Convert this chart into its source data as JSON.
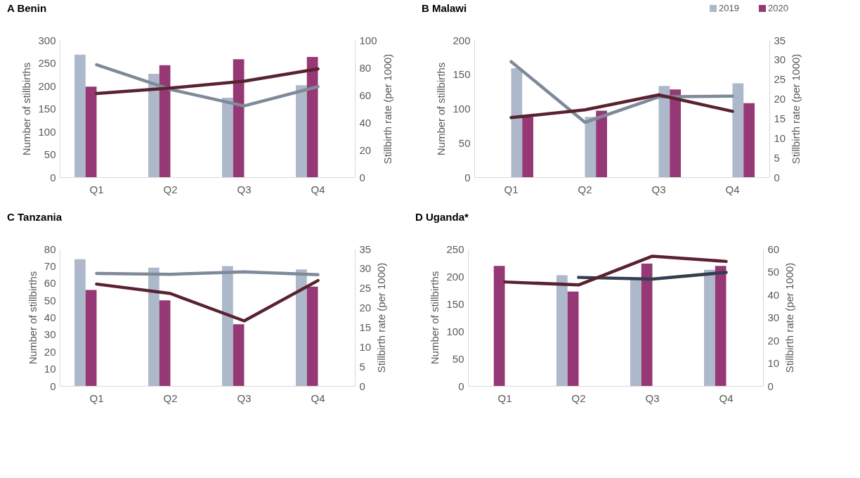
{
  "chart_data": [
    {
      "type": "bar",
      "title": "A Benin",
      "categories": [
        "Q1",
        "Q2",
        "Q3",
        "Q4"
      ],
      "ylabel": "Number of stillbirths",
      "y2label": "Stillbirth rate (per 1000)",
      "ylim": [
        0,
        300
      ],
      "yticks": [
        0,
        50,
        100,
        150,
        200,
        250,
        300
      ],
      "y2lim": [
        0,
        100
      ],
      "y2ticks": [
        0,
        20,
        40,
        60,
        80,
        100
      ],
      "grid": false,
      "legend": false,
      "series": [
        {
          "type": "bar",
          "color": "#adb9ca",
          "values": [
            268,
            226,
            174,
            201
          ]
        },
        {
          "type": "bar",
          "color": "#953875",
          "values": [
            198,
            245,
            258,
            263
          ]
        },
        {
          "type": "line",
          "axis": "y2",
          "color": "#7f8a99",
          "values": [
            82,
            64,
            52,
            66
          ]
        },
        {
          "type": "line",
          "axis": "y2",
          "color": "#5a2230",
          "values": [
            61,
            65,
            70,
            79
          ]
        }
      ]
    },
    {
      "type": "bar",
      "title": "B Malawi",
      "categories": [
        "Q1",
        "Q2",
        "Q3",
        "Q4"
      ],
      "ylabel": "Number of stillbirths",
      "y2label": "Stillbirth rate (per 1000)",
      "ylim": [
        0,
        200
      ],
      "yticks": [
        0,
        50,
        100,
        150,
        200
      ],
      "y2lim": [
        0,
        35
      ],
      "y2ticks": [
        0,
        5,
        10,
        15,
        20,
        25,
        30,
        35
      ],
      "grid": false,
      "legend": "top right",
      "series": [
        {
          "name": "2019",
          "type": "bar",
          "color": "#adb9ca",
          "values": [
            159,
            88,
            133,
            137
          ]
        },
        {
          "name": "2020",
          "type": "bar",
          "color": "#953875",
          "values": [
            88,
            97,
            128,
            108
          ]
        },
        {
          "type": "line",
          "axis": "y2",
          "color": "#7f8a99",
          "values": [
            29.5,
            14,
            20.5,
            20.7
          ]
        },
        {
          "type": "line",
          "axis": "y2",
          "color": "#5a2230",
          "values": [
            15.2,
            17.2,
            21,
            16.8
          ]
        }
      ]
    },
    {
      "type": "bar",
      "title": "C Tanzania",
      "categories": [
        "Q1",
        "Q2",
        "Q3",
        "Q4"
      ],
      "ylabel": "Number of stillbirths",
      "y2label": "Stillbirth rate (per 1000)",
      "ylim": [
        0,
        80
      ],
      "yticks": [
        0,
        10,
        20,
        30,
        40,
        50,
        60,
        70,
        80
      ],
      "y2lim": [
        0,
        35
      ],
      "y2ticks": [
        0,
        5,
        10,
        15,
        20,
        25,
        30,
        35
      ],
      "grid": false,
      "legend": false,
      "series": [
        {
          "type": "bar",
          "color": "#adb9ca",
          "values": [
            74,
            69,
            70,
            68
          ]
        },
        {
          "type": "bar",
          "color": "#953875",
          "values": [
            56,
            50,
            36,
            58
          ]
        },
        {
          "type": "line",
          "axis": "y2",
          "color": "#7f8a99",
          "values": [
            28.7,
            28.5,
            29.1,
            28.4
          ]
        },
        {
          "type": "line",
          "axis": "y2",
          "color": "#5a2230",
          "values": [
            26,
            23.6,
            16.6,
            26.9
          ]
        }
      ]
    },
    {
      "type": "bar",
      "title": "D Uganda*",
      "categories": [
        "Q1",
        "Q2",
        "Q3",
        "Q4"
      ],
      "ylabel": "Number of stillbirths",
      "y2label": "Stillbirth rate (per 1000)",
      "ylim": [
        0,
        250
      ],
      "yticks": [
        0,
        50,
        100,
        150,
        200,
        250
      ],
      "y2lim": [
        0,
        60
      ],
      "y2ticks": [
        0,
        10,
        20,
        30,
        40,
        50,
        60
      ],
      "grid": false,
      "legend": false,
      "series": [
        {
          "type": "bar",
          "color": "#adb9ca",
          "values": [
            null,
            202,
            196,
            212
          ]
        },
        {
          "type": "bar",
          "color": "#953875",
          "values": [
            219,
            172,
            223,
            219
          ]
        },
        {
          "type": "line",
          "axis": "y2",
          "color": "#323f4f",
          "values": [
            null,
            47.5,
            46.8,
            49.7
          ]
        },
        {
          "type": "line",
          "axis": "y2",
          "color": "#5a2230",
          "values": [
            45.5,
            44.2,
            56.8,
            54.5
          ]
        }
      ]
    }
  ]
}
